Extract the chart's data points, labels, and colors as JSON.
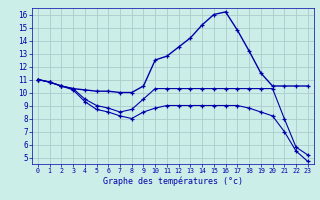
{
  "xlabel": "Graphe des températures (°c)",
  "bg_color": "#cceee8",
  "grid_color": "#aacccc",
  "line_color": "#0000aa",
  "xlim": [
    -0.5,
    23.5
  ],
  "ylim": [
    4.5,
    16.5
  ],
  "xticks": [
    0,
    1,
    2,
    3,
    4,
    5,
    6,
    7,
    8,
    9,
    10,
    11,
    12,
    13,
    14,
    15,
    16,
    17,
    18,
    19,
    20,
    21,
    22,
    23
  ],
  "yticks": [
    5,
    6,
    7,
    8,
    9,
    10,
    11,
    12,
    13,
    14,
    15,
    16
  ],
  "curve1_x": [
    0,
    1,
    2,
    3,
    4,
    5,
    6,
    7,
    8,
    9,
    10,
    11,
    12,
    13,
    14,
    15,
    16,
    17,
    18,
    19,
    20,
    21,
    22,
    23
  ],
  "curve1_y": [
    11.0,
    10.8,
    10.5,
    10.3,
    10.2,
    10.1,
    10.1,
    10.0,
    10.0,
    10.5,
    12.5,
    12.8,
    13.5,
    14.2,
    15.2,
    16.0,
    16.2,
    14.8,
    13.2,
    11.5,
    10.5,
    10.5,
    10.5,
    10.5
  ],
  "curve2_x": [
    0,
    1,
    2,
    3,
    4,
    5,
    6,
    7,
    8,
    9,
    10,
    11,
    12,
    13,
    14,
    15,
    16,
    17,
    18,
    19,
    20,
    21,
    22,
    23
  ],
  "curve2_y": [
    11.0,
    10.8,
    10.5,
    10.3,
    9.5,
    9.0,
    8.8,
    8.5,
    8.7,
    9.5,
    10.3,
    10.3,
    10.3,
    10.3,
    10.3,
    10.3,
    10.3,
    10.3,
    10.3,
    10.3,
    10.3,
    8.0,
    5.8,
    5.2
  ],
  "curve3_x": [
    0,
    1,
    2,
    3,
    4,
    5,
    6,
    7,
    8,
    9,
    10,
    11,
    12,
    13,
    14,
    15,
    16,
    17,
    18,
    19,
    20,
    21,
    22,
    23
  ],
  "curve3_y": [
    11.0,
    10.8,
    10.5,
    10.2,
    9.3,
    8.7,
    8.5,
    8.2,
    8.0,
    8.5,
    8.8,
    9.0,
    9.0,
    9.0,
    9.0,
    9.0,
    9.0,
    9.0,
    8.8,
    8.5,
    8.2,
    7.0,
    5.5,
    4.7
  ]
}
